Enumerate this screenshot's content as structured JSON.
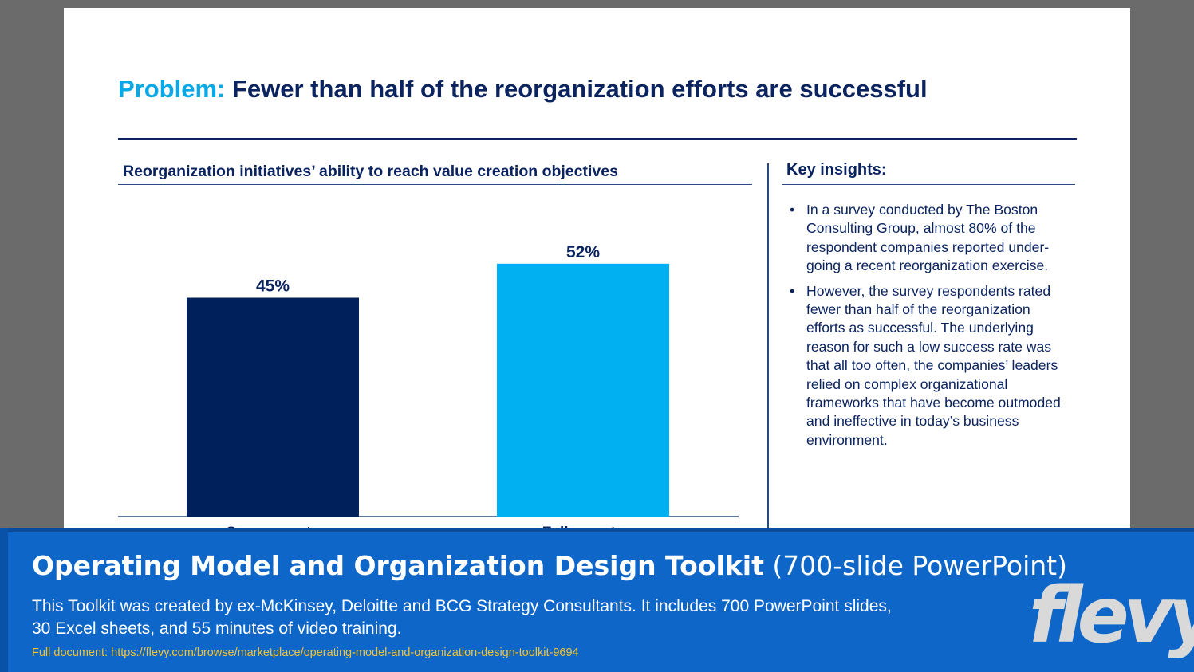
{
  "slide": {
    "title_prefix": "Problem:",
    "title_text": " Fewer than half of the reorganization efforts are successful",
    "chart_heading": "Reorganization initiatives’ ability to reach value creation objectives",
    "insights_heading": "Key insights:",
    "insights": [
      "In a survey conducted by The Boston Consulting Group, almost 80% of the respondent companies reported under-going a recent reorganization exercise.",
      "However, the survey respondents rated fewer than half of the reorganization efforts as successful. The underlying reason for such a low success rate was that all too often, the companies’ leaders relied on complex organizational frameworks that have become outmoded and ineffective in today’s business environment."
    ],
    "bullet_glyph": "•"
  },
  "chart_data": {
    "type": "bar",
    "title": "Reorganization initiatives’ ability to reach value creation objectives",
    "categories": [
      "Success rate",
      "Failure rate"
    ],
    "values": [
      45,
      52
    ],
    "value_labels": [
      "45%",
      "52%"
    ],
    "colors": [
      "#00205b",
      "#00b0f0"
    ],
    "ylim": [
      0,
      60
    ],
    "xlabel": "",
    "ylabel": "",
    "grid": false
  },
  "footer": {
    "title_bold": "Operating Model and Organization Design Toolkit",
    "title_rest": " (700-slide PowerPoint)",
    "description": "This Toolkit was created by ex-McKinsey, Deloitte and BCG Strategy Consultants. It includes 700 PowerPoint slides, 30 Excel sheets, and 55 minutes of video training.",
    "link": "Full document: https://flevy.com/browse/marketplace/operating-model-and-organization-design-toolkit-9694",
    "logo": "flevy"
  }
}
